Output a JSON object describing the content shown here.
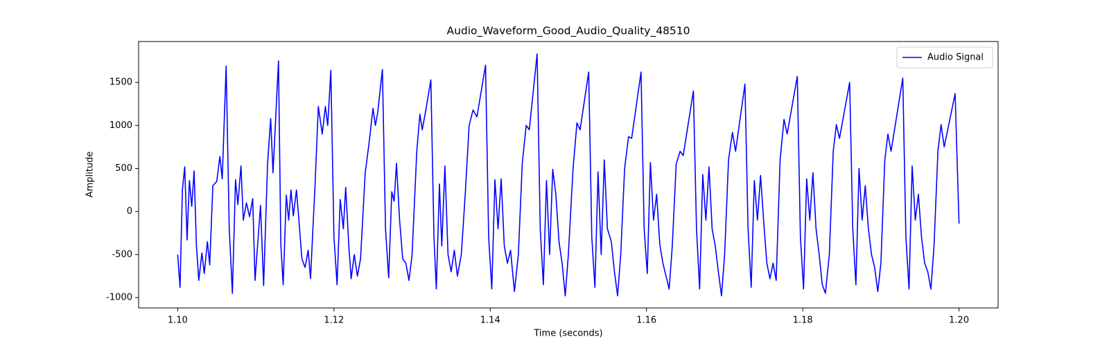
{
  "chart_data": {
    "type": "line",
    "title": "Audio_Waveform_Good_Audio_Quality_48510",
    "x_label": "Time (seconds)",
    "y_label": "Amplitude",
    "legend": "upper right",
    "xlim": [
      1.095,
      1.205
    ],
    "ylim": [
      -1120,
      1975
    ],
    "xticks": [
      {
        "value": 1.1,
        "label": "1.10"
      },
      {
        "value": 1.12,
        "label": "1.12"
      },
      {
        "value": 1.14,
        "label": "1.14"
      },
      {
        "value": 1.16,
        "label": "1.16"
      },
      {
        "value": 1.18,
        "label": "1.18"
      },
      {
        "value": 1.2,
        "label": "1.20"
      }
    ],
    "yticks": [
      -1000,
      -500,
      0,
      500,
      1000,
      1500
    ],
    "x": [
      1.1,
      1.1003,
      1.1006,
      1.1009,
      1.1012,
      1.1015,
      1.1018,
      1.1021,
      1.1024,
      1.1027,
      1.1031,
      1.1034,
      1.1038,
      1.1041,
      1.1045,
      1.105,
      1.1054,
      1.1057,
      1.1062,
      1.1066,
      1.107,
      1.1074,
      1.1077,
      1.1081,
      1.1084,
      1.1088,
      1.1092,
      1.1096,
      1.1099,
      1.1103,
      1.1106,
      1.111,
      1.1115,
      1.1119,
      1.1122,
      1.1129,
      1.1132,
      1.1135,
      1.1139,
      1.1142,
      1.1145,
      1.1148,
      1.1152,
      1.1156,
      1.1159,
      1.1163,
      1.1167,
      1.117,
      1.1176,
      1.118,
      1.1185,
      1.1189,
      1.1192,
      1.1196,
      1.12,
      1.1204,
      1.1208,
      1.1212,
      1.1215,
      1.1219,
      1.1222,
      1.1226,
      1.123,
      1.1234,
      1.124,
      1.1245,
      1.125,
      1.1253,
      1.1256,
      1.1262,
      1.1266,
      1.127,
      1.1274,
      1.1277,
      1.128,
      1.1284,
      1.1288,
      1.1292,
      1.1296,
      1.13,
      1.1306,
      1.131,
      1.1313,
      1.1318,
      1.1324,
      1.1328,
      1.1331,
      1.1335,
      1.1338,
      1.1342,
      1.1346,
      1.135,
      1.1354,
      1.1358,
      1.1363,
      1.1368,
      1.1373,
      1.1378,
      1.1383,
      1.1394,
      1.1398,
      1.1402,
      1.1406,
      1.141,
      1.1414,
      1.1418,
      1.1422,
      1.1426,
      1.1431,
      1.1436,
      1.1441,
      1.1446,
      1.145,
      1.146,
      1.1464,
      1.1468,
      1.1472,
      1.1476,
      1.148,
      1.1484,
      1.1488,
      1.1492,
      1.1496,
      1.15,
      1.1506,
      1.1511,
      1.1515,
      1.1526,
      1.153,
      1.1534,
      1.1538,
      1.1542,
      1.1546,
      1.155,
      1.1555,
      1.1559,
      1.1563,
      1.1567,
      1.1572,
      1.1577,
      1.1581,
      1.1593,
      1.1597,
      1.1601,
      1.1605,
      1.1609,
      1.1613,
      1.1617,
      1.1621,
      1.1625,
      1.1629,
      1.1633,
      1.1638,
      1.1643,
      1.1647,
      1.166,
      1.1664,
      1.1668,
      1.1672,
      1.1676,
      1.168,
      1.1684,
      1.1688,
      1.1692,
      1.1696,
      1.17,
      1.1705,
      1.171,
      1.1714,
      1.1726,
      1.173,
      1.1734,
      1.1738,
      1.1742,
      1.1746,
      1.175,
      1.1754,
      1.1758,
      1.1762,
      1.1766,
      1.1771,
      1.1776,
      1.178,
      1.1793,
      1.1797,
      1.1801,
      1.1805,
      1.1809,
      1.1813,
      1.1817,
      1.1821,
      1.1825,
      1.1829,
      1.1834,
      1.1839,
      1.1843,
      1.1847,
      1.186,
      1.1864,
      1.1868,
      1.1872,
      1.1876,
      1.188,
      1.1884,
      1.1888,
      1.1892,
      1.1896,
      1.19,
      1.1905,
      1.1909,
      1.1913,
      1.1928,
      1.1932,
      1.1936,
      1.194,
      1.1944,
      1.1948,
      1.1952,
      1.1956,
      1.196,
      1.1964,
      1.1968,
      1.1973,
      1.1977,
      1.1981,
      1.1995,
      1.2
    ],
    "series": [
      {
        "name": "Audio Signal",
        "color": "#0000ff",
        "values": [
          -500,
          -880,
          250,
          520,
          -330,
          360,
          60,
          470,
          -400,
          -800,
          -480,
          -720,
          -350,
          -620,
          300,
          350,
          640,
          380,
          1690,
          -200,
          -950,
          370,
          80,
          530,
          -100,
          100,
          -60,
          150,
          -800,
          -300,
          70,
          -860,
          550,
          1080,
          450,
          1750,
          -380,
          -850,
          190,
          -100,
          250,
          -50,
          250,
          -200,
          -550,
          -650,
          -450,
          -780,
          350,
          1220,
          900,
          1220,
          1000,
          1640,
          -300,
          -850,
          140,
          -200,
          280,
          -400,
          -780,
          -500,
          -750,
          -550,
          450,
          800,
          1200,
          1000,
          1150,
          1650,
          -200,
          -770,
          230,
          120,
          560,
          -100,
          -550,
          -600,
          -800,
          -500,
          700,
          1130,
          950,
          1200,
          1530,
          -300,
          -900,
          320,
          -400,
          530,
          -500,
          -700,
          -450,
          -750,
          -500,
          200,
          1000,
          1180,
          1100,
          1700,
          -300,
          -900,
          370,
          -200,
          380,
          -400,
          -600,
          -450,
          -930,
          -500,
          560,
          1000,
          950,
          1830,
          -200,
          -850,
          360,
          -500,
          490,
          200,
          -350,
          -600,
          -980,
          -500,
          500,
          1030,
          950,
          1620,
          -300,
          -880,
          460,
          -500,
          600,
          -200,
          -350,
          -700,
          -980,
          -500,
          500,
          870,
          850,
          1620,
          -200,
          -720,
          570,
          -100,
          200,
          -380,
          -600,
          -750,
          -900,
          -400,
          550,
          700,
          650,
          1400,
          -200,
          -900,
          430,
          -100,
          520,
          -200,
          -400,
          -700,
          -980,
          -500,
          600,
          920,
          700,
          1480,
          -200,
          -880,
          360,
          -100,
          420,
          -120,
          -600,
          -780,
          -600,
          -800,
          600,
          1070,
          900,
          1570,
          -300,
          -900,
          380,
          -100,
          450,
          -200,
          -500,
          -850,
          -950,
          -500,
          700,
          1010,
          850,
          1500,
          -200,
          -850,
          500,
          -100,
          300,
          -200,
          -500,
          -650,
          -930,
          -600,
          600,
          900,
          700,
          1550,
          -300,
          -900,
          530,
          -100,
          200,
          -300,
          -600,
          -700,
          -900,
          -400,
          700,
          1010,
          750,
          1370,
          -140
        ]
      }
    ]
  }
}
